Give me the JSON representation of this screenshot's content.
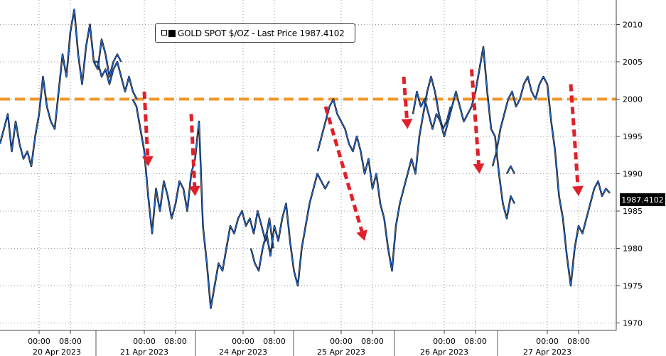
{
  "chart_data": {
    "type": "line",
    "title": "",
    "ylim": [
      1969,
      2013
    ],
    "y_ticks": [
      1970,
      1975,
      1980,
      1985,
      1990,
      1995,
      2000,
      2005,
      2010
    ],
    "legend": {
      "label": "GOLD SPOT $/OZ - Last Price 1987.4102",
      "placement": "top-left"
    },
    "last_price_label": "1987.4102",
    "last_price": 1987.41,
    "reference_line": {
      "y": 2000,
      "color": "#f0962a",
      "style": "dashed"
    },
    "x_tick_labels": [
      {
        "time": "00:00",
        "day": 0,
        "hour": 0
      },
      {
        "time": "08:00",
        "day": 0,
        "hour": 8
      },
      {
        "time": "00:00",
        "day": 1,
        "hour": 0
      },
      {
        "time": "08:00",
        "day": 1,
        "hour": 8
      },
      {
        "time": "00:00",
        "day": 2,
        "hour": 0
      },
      {
        "time": "08:00",
        "day": 2,
        "hour": 8
      },
      {
        "time": "00:00",
        "day": 3,
        "hour": 0
      },
      {
        "time": "08:00",
        "day": 3,
        "hour": 8
      },
      {
        "time": "00:00",
        "day": 4,
        "hour": 0
      },
      {
        "time": "08:00",
        "day": 4,
        "hour": 8
      },
      {
        "time": "00:00",
        "day": 5,
        "hour": 0
      },
      {
        "time": "08:00",
        "day": 5,
        "hour": 8
      }
    ],
    "date_labels": [
      "20 Apr 2023",
      "21 Apr 2023",
      "24 Apr 2023",
      "25 Apr 2023",
      "26 Apr 2023",
      "27 Apr 2023"
    ],
    "series": [
      {
        "color": "#2a6fd6",
        "segments": [
          {
            "day": 0,
            "start_hour": -10,
            "values": [
              1994,
              1996,
              1998,
              1993,
              1997,
              1994,
              1992,
              1993,
              1991,
              1995,
              1998,
              2003,
              1999,
              1997,
              1996,
              2001,
              2006,
              2003,
              2009,
              2012,
              2006,
              2002,
              2007,
              2010,
              2005,
              2004,
              2008,
              2006,
              2003,
              2005,
              2006,
              2005
            ]
          },
          {
            "day": 0,
            "start_hour": 14,
            "values": [
              2005,
              2005,
              2003,
              2004,
              2002,
              2004,
              2005,
              2003,
              2001,
              2003,
              2001,
              2000
            ]
          },
          {
            "day": 1,
            "start_hour": -3,
            "values": [
              2000,
              1999,
              1996,
              1993,
              1987,
              1982,
              1988,
              1985,
              1989,
              1987,
              1984,
              1986,
              1989,
              1988,
              1985,
              1990,
              1992,
              1997,
              1983,
              1978,
              1972,
              1975,
              1978,
              1977,
              1980,
              1983,
              1982,
              1984,
              1985,
              1983,
              1984,
              1982,
              1985,
              1983,
              1981,
              1984,
              1980
            ]
          },
          {
            "day": 2,
            "start_hour": 2,
            "values": [
              1980,
              1978,
              1977,
              1980,
              1982,
              1979,
              1983,
              1981,
              1984,
              1986,
              1981,
              1977,
              1975,
              1980,
              1983,
              1986,
              1988,
              1990,
              1989,
              1988,
              1989
            ]
          },
          {
            "day": 3,
            "start_hour": -6,
            "values": [
              1993,
              1995,
              1997,
              1999,
              2000,
              1998,
              1997,
              1996,
              1994,
              1993,
              1995,
              1993,
              1990,
              1992,
              1988,
              1990,
              1986,
              1984,
              1980,
              1977,
              1983,
              1986,
              1988,
              1990,
              1992,
              1990,
              1995,
              1998,
              2001,
              2003,
              2001,
              1998,
              1996,
              1997,
              1999
            ]
          },
          {
            "day": 4,
            "start_hour": -8,
            "values": [
              1998,
              2001,
              1999,
              2000,
              1998,
              1996,
              1998,
              1997,
              1995,
              1997,
              1999,
              2001,
              1999,
              1997,
              1998,
              1999,
              2001,
              2004,
              2007,
              2001,
              1996,
              1995,
              1990,
              1986,
              1984,
              1987,
              1986
            ]
          },
          {
            "day": 4,
            "start_hour": 16,
            "values": [
              1990,
              1991,
              1990
            ]
          },
          {
            "day": 5,
            "start_hour": -14,
            "values": [
              1991,
              1993,
              1996,
              1998,
              2000,
              2001,
              1999,
              2000,
              2002,
              2003,
              2001,
              2000,
              2002,
              2003,
              2002,
              1997,
              1993,
              1987,
              1984,
              1979,
              1975,
              1980,
              1983,
              1982,
              1984,
              1986,
              1988,
              1989,
              1987,
              1988,
              1987.41
            ]
          }
        ]
      }
    ],
    "annotations": [
      {
        "type": "arrow",
        "color": "#e0202a",
        "from_day": 1,
        "from_hour": 0,
        "from_y": 2001,
        "to_day": 1,
        "to_hour": 1,
        "to_y": 1991
      },
      {
        "type": "arrow",
        "color": "#e0202a",
        "from_day": 1,
        "from_hour": 12,
        "from_y": 1998,
        "to_day": 1,
        "to_hour": 13,
        "to_y": 1987
      },
      {
        "type": "arrow",
        "color": "#e0202a",
        "from_day": 3,
        "from_hour": -4,
        "from_y": 1999,
        "to_day": 3,
        "to_hour": 6,
        "to_y": 1981
      },
      {
        "type": "arrow",
        "color": "#e0202a",
        "from_day": 3,
        "from_hour": 16,
        "from_y": 2003,
        "to_day": 3,
        "to_hour": 17,
        "to_y": 1996
      },
      {
        "type": "arrow",
        "color": "#e0202a",
        "from_day": 4,
        "from_hour": 7,
        "from_y": 2004,
        "to_day": 4,
        "to_hour": 9,
        "to_y": 1990
      },
      {
        "type": "arrow",
        "color": "#e0202a",
        "from_day": 5,
        "from_hour": 6,
        "from_y": 2002,
        "to_day": 5,
        "to_hour": 8,
        "to_y": 1987
      }
    ],
    "grid": true
  }
}
